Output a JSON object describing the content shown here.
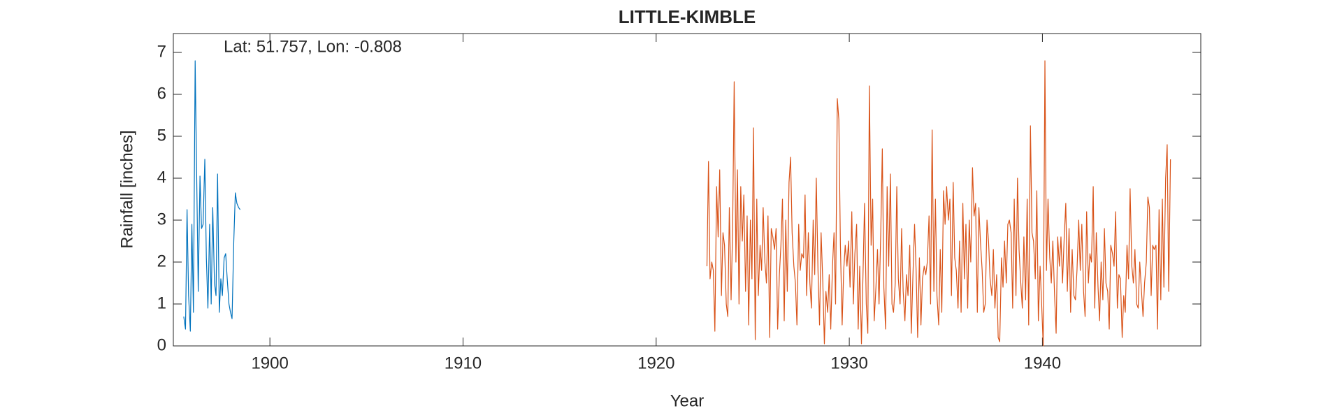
{
  "chart_data": {
    "type": "line",
    "title": "LITTLE-KIMBLE",
    "annotation": "Lat: 51.757, Lon: -0.808",
    "x_label": "Year",
    "y_label": "Rainfall [inches]",
    "xlim": [
      1895,
      1948.2
    ],
    "ylim": [
      0,
      7.45
    ],
    "xticks": [
      1900,
      1910,
      1920,
      1930,
      1940
    ],
    "yticks": [
      0,
      1,
      2,
      3,
      4,
      5,
      6,
      7
    ],
    "series": [
      {
        "color": "#0072BD",
        "x": [
          1895.54,
          1895.63,
          1895.71,
          1895.79,
          1895.88,
          1895.96,
          1896.04,
          1896.13,
          1896.21,
          1896.29,
          1896.38,
          1896.46,
          1896.54,
          1896.63,
          1896.71,
          1896.79,
          1896.88,
          1896.96,
          1897.04,
          1897.13,
          1897.21,
          1897.29,
          1897.38,
          1897.46,
          1897.54,
          1897.63,
          1897.71,
          1897.79,
          1897.88,
          1897.96,
          1898.04,
          1898.13,
          1898.21,
          1898.29,
          1898.38,
          1898.46
        ],
        "values": [
          0.7,
          0.4,
          3.25,
          1.2,
          0.35,
          2.9,
          0.8,
          6.8,
          4.0,
          1.3,
          4.05,
          2.8,
          2.9,
          4.45,
          2.1,
          0.9,
          2.9,
          1.0,
          3.3,
          1.5,
          1.2,
          4.1,
          0.8,
          1.6,
          1.2,
          2.1,
          2.2,
          1.6,
          1.0,
          0.8,
          0.65,
          2.5,
          3.65,
          3.4,
          3.3,
          3.25
        ]
      },
      {
        "color": "#D95319",
        "x": [
          1922.63,
          1922.71,
          1922.79,
          1922.88,
          1922.96,
          1923.04,
          1923.13,
          1923.21,
          1923.29,
          1923.38,
          1923.46,
          1923.54,
          1923.63,
          1923.71,
          1923.79,
          1923.88,
          1923.96,
          1924.04,
          1924.13,
          1924.21,
          1924.29,
          1924.38,
          1924.46,
          1924.54,
          1924.63,
          1924.71,
          1924.79,
          1924.88,
          1924.96,
          1925.04,
          1925.13,
          1925.21,
          1925.29,
          1925.38,
          1925.46,
          1925.54,
          1925.63,
          1925.71,
          1925.79,
          1925.88,
          1925.96,
          1926.04,
          1926.13,
          1926.21,
          1926.29,
          1926.38,
          1926.46,
          1926.54,
          1926.63,
          1926.71,
          1926.79,
          1926.88,
          1926.96,
          1927.04,
          1927.13,
          1927.21,
          1927.29,
          1927.38,
          1927.46,
          1927.54,
          1927.63,
          1927.71,
          1927.79,
          1927.88,
          1927.96,
          1928.04,
          1928.13,
          1928.21,
          1928.29,
          1928.38,
          1928.46,
          1928.54,
          1928.63,
          1928.71,
          1928.79,
          1928.88,
          1928.96,
          1929.04,
          1929.13,
          1929.21,
          1929.29,
          1929.38,
          1929.46,
          1929.54,
          1929.63,
          1929.71,
          1929.79,
          1929.88,
          1929.96,
          1930.04,
          1930.13,
          1930.21,
          1930.29,
          1930.38,
          1930.46,
          1930.54,
          1930.63,
          1930.71,
          1930.79,
          1930.88,
          1930.96,
          1931.04,
          1931.13,
          1931.21,
          1931.29,
          1931.38,
          1931.46,
          1931.54,
          1931.63,
          1931.71,
          1931.79,
          1931.88,
          1931.96,
          1932.04,
          1932.13,
          1932.21,
          1932.29,
          1932.38,
          1932.46,
          1932.54,
          1932.63,
          1932.71,
          1932.79,
          1932.88,
          1932.96,
          1933.04,
          1933.13,
          1933.21,
          1933.29,
          1933.38,
          1933.46,
          1933.54,
          1933.63,
          1933.71,
          1933.79,
          1933.88,
          1933.96,
          1934.04,
          1934.13,
          1934.21,
          1934.29,
          1934.38,
          1934.46,
          1934.54,
          1934.63,
          1934.71,
          1934.79,
          1934.88,
          1934.96,
          1935.04,
          1935.13,
          1935.21,
          1935.29,
          1935.38,
          1935.46,
          1935.54,
          1935.63,
          1935.71,
          1935.79,
          1935.88,
          1935.96,
          1936.04,
          1936.13,
          1936.21,
          1936.29,
          1936.38,
          1936.46,
          1936.54,
          1936.63,
          1936.71,
          1936.79,
          1936.88,
          1936.96,
          1937.04,
          1937.13,
          1937.21,
          1937.29,
          1937.38,
          1937.46,
          1937.54,
          1937.63,
          1937.71,
          1937.79,
          1937.88,
          1937.96,
          1938.04,
          1938.13,
          1938.21,
          1938.29,
          1938.38,
          1938.46,
          1938.54,
          1938.63,
          1938.71,
          1938.79,
          1938.88,
          1938.96,
          1939.04,
          1939.13,
          1939.21,
          1939.29,
          1939.38,
          1939.46,
          1939.54,
          1939.63,
          1939.71,
          1939.79,
          1939.88,
          1939.96,
          1940.04,
          1940.13,
          1940.21,
          1940.29,
          1940.38,
          1940.46,
          1940.54,
          1940.63,
          1940.71,
          1940.79,
          1940.88,
          1940.96,
          1941.04,
          1941.13,
          1941.21,
          1941.29,
          1941.38,
          1941.46,
          1941.54,
          1941.63,
          1941.71,
          1941.79,
          1941.88,
          1941.96,
          1942.04,
          1942.13,
          1942.21,
          1942.29,
          1942.38,
          1942.46,
          1942.54,
          1942.63,
          1942.71,
          1942.79,
          1942.88,
          1942.96,
          1943.04,
          1943.13,
          1943.21,
          1943.29,
          1943.38,
          1943.46,
          1943.54,
          1943.63,
          1943.71,
          1943.79,
          1943.88,
          1943.96,
          1944.04,
          1944.13,
          1944.21,
          1944.29,
          1944.38,
          1944.46,
          1944.54,
          1944.63,
          1944.71,
          1944.79,
          1944.88,
          1944.96,
          1945.04,
          1945.13,
          1945.21,
          1945.29,
          1945.38,
          1945.46,
          1945.54,
          1945.63,
          1945.71,
          1945.79,
          1945.88,
          1945.96,
          1946.04,
          1946.13,
          1946.21,
          1946.29,
          1946.38,
          1946.46,
          1946.54,
          1946.63
        ],
        "values": [
          1.9,
          4.4,
          1.6,
          2.0,
          1.8,
          0.35,
          3.8,
          2.6,
          4.2,
          1.2,
          2.7,
          2.4,
          1.0,
          0.7,
          3.3,
          1.1,
          2.8,
          6.3,
          2.0,
          4.2,
          1.0,
          3.8,
          2.5,
          3.6,
          1.3,
          3.1,
          0.5,
          3.0,
          1.6,
          5.2,
          0.15,
          3.5,
          1.2,
          2.4,
          1.8,
          3.3,
          2.0,
          1.5,
          3.1,
          0.2,
          2.8,
          2.6,
          2.3,
          2.8,
          0.4,
          1.7,
          2.4,
          3.5,
          0.6,
          3.0,
          1.3,
          3.9,
          4.5,
          2.7,
          1.9,
          1.5,
          0.5,
          2.9,
          1.8,
          2.2,
          2.1,
          3.6,
          1.2,
          2.7,
          1.5,
          0.9,
          3.0,
          1.7,
          4.0,
          1.8,
          0.5,
          2.7,
          1.5,
          0.05,
          1.3,
          0.8,
          1.7,
          0.4,
          1.9,
          2.7,
          1.0,
          5.9,
          5.4,
          2.4,
          0.5,
          1.8,
          2.4,
          1.9,
          2.5,
          1.4,
          3.2,
          1.0,
          2.2,
          2.9,
          0.4,
          1.9,
          0.05,
          1.7,
          3.4,
          1.0,
          0.3,
          6.2,
          2.4,
          3.5,
          0.6,
          1.4,
          2.3,
          1.0,
          2.7,
          4.7,
          1.4,
          0.4,
          3.8,
          1.9,
          4.1,
          1.0,
          0.8,
          1.5,
          3.8,
          1.6,
          1.0,
          2.8,
          1.3,
          0.6,
          1.7,
          1.2,
          2.4,
          0.3,
          1.6,
          2.9,
          1.8,
          0.2,
          2.1,
          0.5,
          1.6,
          1.9,
          1.7,
          2.0,
          3.1,
          1.0,
          5.15,
          1.3,
          3.5,
          1.2,
          0.5,
          2.3,
          0.8,
          3.7,
          2.9,
          3.8,
          3.0,
          3.5,
          1.2,
          3.9,
          2.1,
          1.8,
          0.9,
          2.5,
          0.8,
          3.4,
          1.6,
          2.9,
          0.9,
          3.0,
          2.0,
          4.25,
          3.1,
          3.4,
          0.8,
          3.3,
          2.5,
          1.8,
          0.8,
          1.0,
          3.0,
          2.5,
          1.6,
          1.2,
          2.3,
          0.9,
          1.7,
          0.2,
          0.1,
          2.1,
          1.4,
          2.5,
          1.5,
          2.9,
          3.0,
          2.7,
          0.9,
          3.5,
          1.2,
          4.0,
          2.3,
          1.5,
          0.9,
          2.6,
          1.1,
          3.5,
          0.5,
          5.25,
          2.7,
          2.5,
          1.6,
          3.7,
          0.6,
          1.9,
          1.0,
          0.0,
          6.8,
          1.8,
          3.5,
          2.1,
          1.5,
          2.5,
          1.2,
          0.3,
          2.6,
          1.9,
          2.6,
          1.5,
          2.6,
          3.4,
          1.3,
          2.8,
          0.8,
          2.3,
          1.2,
          1.1,
          1.8,
          3.0,
          1.8,
          2.9,
          1.3,
          0.7,
          3.2,
          1.5,
          2.2,
          2.0,
          3.8,
          0.9,
          2.7,
          1.4,
          0.6,
          2.0,
          1.1,
          2.8,
          1.5,
          1.3,
          0.4,
          2.4,
          2.2,
          1.9,
          3.2,
          0.9,
          1.7,
          1.6,
          0.2,
          1.2,
          0.8,
          2.4,
          1.6,
          3.75,
          1.9,
          1.5,
          2.3,
          1.0,
          0.9,
          2.0,
          1.3,
          0.7,
          1.5,
          2.0,
          3.55,
          3.3,
          1.2,
          2.4,
          2.3,
          2.4,
          0.4,
          3.25,
          1.1,
          3.5,
          1.4,
          4.0,
          4.8,
          1.3,
          4.45
        ]
      }
    ]
  }
}
